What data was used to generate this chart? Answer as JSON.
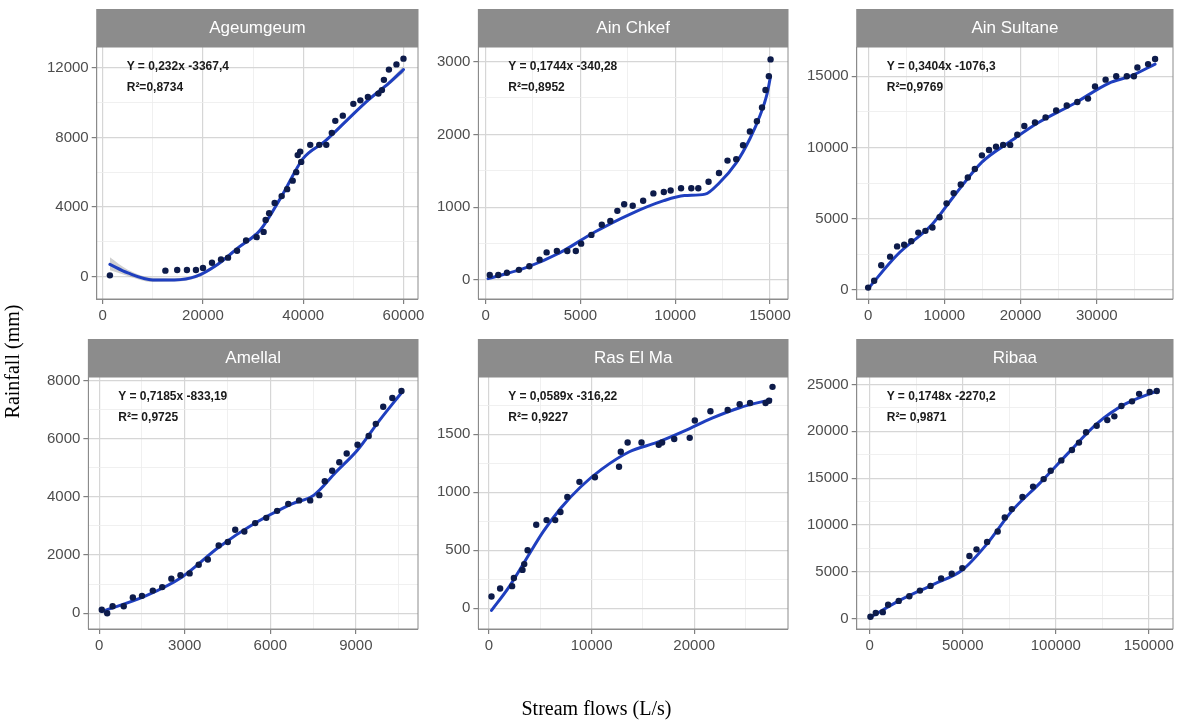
{
  "chart_data": [
    {
      "type": "scatter",
      "title": "Ageumgeum",
      "ylabel": "Rainfall (mm)",
      "annotations": [
        "Y = 0,232x -3367,4",
        "R²=0,8734"
      ],
      "grid": true,
      "marker": "circle",
      "xlim": [
        -1200,
        62900
      ],
      "ylim": [
        -1300,
        13200
      ],
      "xticks": [
        0,
        {
          "value": 10000,
          "label": null
        },
        20000,
        {
          "value": 30000,
          "label": null
        },
        40000,
        {
          "value": 50000,
          "label": null
        },
        60000
      ],
      "yticks": [
        0,
        {
          "value": 2000,
          "label": null
        },
        4000,
        {
          "value": 6000,
          "label": null
        },
        8000,
        {
          "value": 10000,
          "label": null
        },
        12000
      ],
      "series": [
        {
          "color": "#0d1b4a",
          "x": [
            1430,
            12500,
            14860,
            16800,
            18600,
            20000,
            21800,
            23600,
            25000,
            26800,
            28600,
            30700,
            32100,
            32500,
            33200,
            34300,
            35700,
            36800,
            37900,
            38600,
            38900,
            39400,
            39600,
            41400,
            43200,
            44600,
            45700,
            46400,
            47900,
            50000,
            51400,
            52900,
            55000,
            55700,
            56100,
            57100,
            58600,
            60000
          ],
          "values": [
            60,
            330,
            370,
            370,
            370,
            490,
            790,
            980,
            1080,
            1480,
            2070,
            2260,
            2560,
            3250,
            3640,
            4230,
            4620,
            5020,
            5510,
            6000,
            6980,
            7180,
            6590,
            7570,
            7570,
            7570,
            8260,
            8950,
            9250,
            9930,
            10130,
            10330,
            10520,
            10720,
            11310,
            11900,
            12200,
            12530
          ]
        },
        {
          "type": "line",
          "marker": "none",
          "line_style": "solid",
          "color": "#1f3fbf",
          "x": [
            1430,
            5000,
            10000,
            14300,
            18600,
            22900,
            27100,
            31400,
            35700,
            40000,
            44300,
            48600,
            52900,
            57100,
            60000
          ],
          "values": [
            690,
            200,
            -200,
            -200,
            0,
            690,
            1670,
            2660,
            4620,
            6790,
            7770,
            8950,
            10130,
            11120,
            11900
          ],
          "lower": [
            350,
            30,
            -320,
            -300,
            -100,
            590,
            1570,
            2560,
            4520,
            6690,
            7670,
            8850,
            10030,
            11000,
            11700
          ],
          "upper": [
            1100,
            380,
            -80,
            -100,
            100,
            790,
            1770,
            2760,
            4720,
            6890,
            7870,
            9050,
            10230,
            11240,
            12100
          ]
        }
      ]
    },
    {
      "type": "scatter",
      "title": "Ain Chkef",
      "annotations": [
        "Y = 0,1744x -340,28",
        "R²=0,8952"
      ],
      "grid": true,
      "marker": "circle",
      "xlim": [
        -380,
        15950
      ],
      "ylim": [
        -260,
        3200
      ],
      "xticks": [
        0,
        {
          "value": 2500,
          "label": null
        },
        5000,
        {
          "value": 7500,
          "label": null
        },
        10000,
        {
          "value": 12500,
          "label": null
        },
        15000
      ],
      "yticks": [
        0,
        {
          "value": 500,
          "label": null
        },
        1000,
        {
          "value": 1500,
          "label": null
        },
        2000,
        {
          "value": 2500,
          "label": null
        },
        3000
      ],
      "series": [
        {
          "color": "#0d1b4a",
          "x": [
            220,
            670,
            1130,
            1760,
            2310,
            2850,
            3220,
            3760,
            4310,
            4760,
            5040,
            5580,
            6130,
            6580,
            6950,
            7310,
            7760,
            8310,
            8850,
            9400,
            9760,
            10310,
            10850,
            11220,
            11760,
            12310,
            12760,
            13220,
            13580,
            13940,
            14310,
            14580,
            14760,
            14940,
            15030
          ],
          "values": [
            70,
            70,
            100,
            140,
            190,
            280,
            380,
            400,
            400,
            400,
            500,
            620,
            760,
            810,
            950,
            1040,
            1020,
            1090,
            1190,
            1210,
            1230,
            1260,
            1260,
            1260,
            1350,
            1470,
            1640,
            1660,
            1850,
            2040,
            2180,
            2370,
            2610,
            2800,
            3030
          ]
        },
        {
          "type": "line",
          "marker": "none",
          "line_style": "solid",
          "color": "#1f3fbf",
          "x": [
            130,
            2130,
            3950,
            5760,
            7580,
            9400,
            10490,
            11580,
            12310,
            13220,
            13940,
            14490,
            14850,
            15030
          ],
          "values": [
            20,
            170,
            380,
            660,
            900,
            1090,
            1160,
            1180,
            1330,
            1610,
            1940,
            2270,
            2560,
            2800
          ]
        }
      ]
    },
    {
      "type": "scatter",
      "title": "Ain Sultane",
      "annotations": [
        "Y = 0,3404x -1076,3",
        "R²=0,9769"
      ],
      "grid": true,
      "marker": "circle",
      "xlim": [
        -1500,
        40000
      ],
      "ylim": [
        -630,
        17050
      ],
      "xticks": [
        0,
        {
          "value": 5000,
          "label": null
        },
        10000,
        {
          "value": 15000,
          "label": null
        },
        20000,
        {
          "value": 25000,
          "label": null
        },
        30000,
        {
          "value": 35000,
          "label": null
        }
      ],
      "yticks": [
        0,
        {
          "value": 2500,
          "label": null
        },
        5000,
        {
          "value": 7500,
          "label": null
        },
        10000,
        {
          "value": 12500,
          "label": null
        },
        15000
      ],
      "series": [
        {
          "color": "#0d1b4a",
          "x": [
            0,
            790,
            1720,
            2880,
            3800,
            4730,
            5660,
            6580,
            7510,
            8440,
            9370,
            10290,
            11220,
            12150,
            13080,
            14000,
            14930,
            15860,
            16780,
            17710,
            18640,
            19570,
            20490,
            21890,
            23280,
            24670,
            26060,
            27450,
            28850,
            29770,
            31160,
            32550,
            33940,
            34870,
            35330,
            36730,
            37650
          ],
          "values": [
            170,
            650,
            1740,
            2340,
            3060,
            3180,
            3430,
            4030,
            4150,
            4390,
            5110,
            6080,
            6800,
            7400,
            7890,
            8490,
            9450,
            9820,
            10060,
            10180,
            10180,
            10900,
            11510,
            11750,
            12110,
            12590,
            12950,
            13190,
            13430,
            14280,
            14760,
            15000,
            15000,
            15000,
            15610,
            15850,
            16210
          ]
        },
        {
          "type": "line",
          "marker": "none",
          "line_style": "solid",
          "color": "#1f3fbf",
          "x": [
            0,
            3800,
            8440,
            11220,
            14930,
            18640,
            22350,
            26990,
            31620,
            34410,
            37650
          ],
          "values": [
            100,
            2460,
            4630,
            6560,
            8970,
            10420,
            11750,
            13070,
            14520,
            15000,
            15850
          ]
        }
      ]
    },
    {
      "type": "scatter",
      "title": "Amellal",
      "annotations": [
        "Y = 0,7185x -833,19",
        "R²= 0,9725"
      ],
      "grid": true,
      "marker": "circle",
      "xlim": [
        -380,
        11180
      ],
      "ylim": [
        -540,
        8120
      ],
      "xticks": [
        0,
        {
          "value": 1500,
          "label": null
        },
        3000,
        {
          "value": 4500,
          "label": null
        },
        6000,
        {
          "value": 7500,
          "label": null
        },
        9000,
        {
          "value": 10500,
          "label": null
        }
      ],
      "yticks": [
        0,
        {
          "value": 1000,
          "label": null
        },
        2000,
        {
          "value": 3000,
          "label": null
        },
        4000,
        {
          "value": 5000,
          "label": null
        },
        6000,
        {
          "value": 7000,
          "label": null
        },
        8000
      ],
      "series": [
        {
          "color": "#0d1b4a",
          "x": [
            90,
            280,
            470,
            860,
            1180,
            1500,
            1880,
            2210,
            2530,
            2850,
            3170,
            3490,
            3810,
            4190,
            4510,
            4770,
            5090,
            5470,
            5860,
            6240,
            6630,
            7010,
            7400,
            7720,
            7910,
            8170,
            8420,
            8680,
            9060,
            9450,
            9700,
            9960,
            10280,
            10600
          ],
          "values": [
            120,
            0,
            240,
            240,
            540,
            600,
            780,
            900,
            1190,
            1310,
            1370,
            1670,
            1850,
            2330,
            2450,
            2870,
            2810,
            3100,
            3280,
            3520,
            3760,
            3880,
            3880,
            4060,
            4540,
            4900,
            5190,
            5490,
            5790,
            6090,
            6510,
            7100,
            7400,
            7640
          ]
        },
        {
          "type": "line",
          "marker": "none",
          "line_style": "solid",
          "color": "#1f3fbf",
          "x": [
            90,
            1630,
            2910,
            4190,
            5470,
            6760,
            7530,
            8290,
            9060,
            9830,
            10600
          ],
          "values": [
            60,
            600,
            1250,
            2270,
            3100,
            3760,
            4060,
            4840,
            5610,
            6630,
            7580
          ]
        }
      ]
    },
    {
      "type": "scatter",
      "title": "Ras El Ma",
      "xlabel": "Stream flows (L/s)",
      "annotations": [
        "Y = 0,0589x -316,22",
        "R²= 0,9227"
      ],
      "grid": true,
      "marker": "circle",
      "xlim": [
        -1040,
        29140
      ],
      "ylim": [
        -180,
        1995
      ],
      "xticks": [
        0,
        {
          "value": 5000,
          "label": null
        },
        10000,
        {
          "value": 15000,
          "label": null
        },
        20000,
        {
          "value": 25000,
          "label": null
        }
      ],
      "yticks": [
        0,
        {
          "value": 250,
          "label": null
        },
        500,
        {
          "value": 750,
          "label": null
        },
        1000,
        {
          "value": 1250,
          "label": null
        },
        1500,
        {
          "value": 1750,
          "label": null
        }
      ],
      "series": [
        {
          "color": "#0d1b4a",
          "x": [
            240,
            1080,
            2250,
            2420,
            3260,
            3430,
            3760,
            4600,
            5610,
            6450,
            6960,
            7630,
            8810,
            10320,
            12670,
            12840,
            13510,
            14860,
            16540,
            16870,
            18050,
            19560,
            20060,
            21580,
            23260,
            24430,
            25440,
            26950,
            27290,
            27630
          ],
          "values": [
            100,
            170,
            190,
            260,
            330,
            380,
            500,
            720,
            760,
            760,
            830,
            960,
            1090,
            1130,
            1220,
            1350,
            1430,
            1430,
            1410,
            1430,
            1460,
            1470,
            1620,
            1700,
            1710,
            1760,
            1770,
            1770,
            1790,
            1910
          ]
        },
        {
          "type": "line",
          "marker": "none",
          "line_style": "solid",
          "color": "#1f3fbf",
          "x": [
            240,
            1920,
            3600,
            5280,
            6960,
            8970,
            10990,
            13680,
            16370,
            19060,
            21740,
            24430,
            27460
          ],
          "values": [
            -20,
            180,
            420,
            660,
            860,
            1050,
            1200,
            1350,
            1430,
            1530,
            1640,
            1730,
            1800
          ]
        }
      ]
    },
    {
      "type": "scatter",
      "title": "Ribaa",
      "annotations": [
        "Y = 0,1748x -2270,2",
        "R²= 0,9871"
      ],
      "grid": true,
      "marker": "circle",
      "xlim": [
        -7000,
        163000
      ],
      "ylim": [
        -1100,
        25800
      ],
      "xticks": [
        0,
        {
          "value": 25000,
          "label": null
        },
        50000,
        {
          "value": 75000,
          "label": null
        },
        100000,
        {
          "value": 125000,
          "label": null
        },
        150000
      ],
      "yticks": [
        0,
        {
          "value": 2500,
          "label": null
        },
        5000,
        {
          "value": 7500,
          "label": null
        },
        10000,
        {
          "value": 12500,
          "label": null
        },
        15000,
        {
          "value": 17500,
          "label": null
        },
        20000,
        {
          "value": 22500,
          "label": null
        },
        25000
      ],
      "series": [
        {
          "color": "#0d1b4a",
          "x": [
            380,
            3230,
            7030,
            9880,
            15580,
            21280,
            26980,
            32680,
            38380,
            44080,
            49780,
            53580,
            57380,
            63080,
            68780,
            72580,
            76380,
            82080,
            87780,
            93480,
            97280,
            102980,
            108680,
            112480,
            116280,
            121980,
            127680,
            131480,
            135280,
            140980,
            144780,
            150480,
            154280
          ],
          "values": [
            200,
            600,
            700,
            1500,
            1900,
            2400,
            3000,
            3500,
            4300,
            4800,
            5400,
            6700,
            7400,
            8200,
            9300,
            10800,
            11700,
            13000,
            14100,
            14900,
            15800,
            16900,
            18000,
            18800,
            19900,
            20600,
            21200,
            21600,
            22700,
            23200,
            24000,
            24200,
            24300
          ]
        },
        {
          "type": "line",
          "marker": "none",
          "line_style": "solid",
          "color": "#1f3fbf",
          "x": [
            0,
            15580,
            34580,
            49780,
            63080,
            76380,
            91580,
            106780,
            121980,
            137180,
            154280
          ],
          "values": [
            100,
            1900,
            3700,
            5200,
            8000,
            11500,
            14500,
            17700,
            20800,
            22900,
            24300
          ]
        }
      ]
    }
  ]
}
